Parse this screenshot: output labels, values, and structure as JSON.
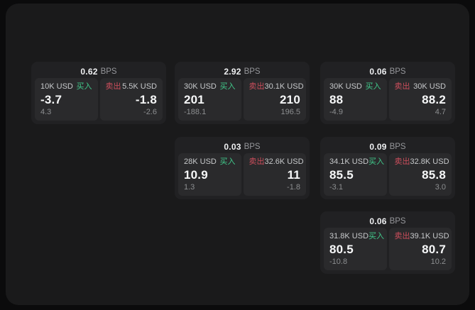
{
  "labels": {
    "bps_unit": "BPS",
    "buy": "买入",
    "sell": "卖出"
  },
  "theme": {
    "page_bg": "#0b0b0c",
    "surface_bg": "#1a1a1b",
    "card_bg": "#212123",
    "panel_bg": "#2a2a2c",
    "buy_color": "#41c98b",
    "sell_color": "#cc4e5c",
    "number_color": "#f7f8f9",
    "muted_color": "#8c8e90"
  },
  "cards": [
    {
      "bps": "0.62",
      "buy": {
        "size": "10K USD",
        "price": "-3.7",
        "change": "4.3"
      },
      "sell": {
        "size": "5.5K USD",
        "price": "-1.8",
        "change": "-2.6"
      }
    },
    {
      "bps": "2.92",
      "buy": {
        "size": "30K USD",
        "price": "201",
        "change": "-188.1"
      },
      "sell": {
        "size": "30.1K USD",
        "price": "210",
        "change": "196.5"
      }
    },
    {
      "bps": "0.06",
      "buy": {
        "size": "30K USD",
        "price": "88",
        "change": "-4.9"
      },
      "sell": {
        "size": "30K USD",
        "price": "88.2",
        "change": "4.7"
      }
    },
    {
      "bps": "0.03",
      "buy": {
        "size": "28K USD",
        "price": "10.9",
        "change": "1.3"
      },
      "sell": {
        "size": "32.6K USD",
        "price": "11",
        "change": "-1.8"
      }
    },
    {
      "bps": "0.09",
      "buy": {
        "size": "34.1K USD",
        "price": "85.5",
        "change": "-3.1"
      },
      "sell": {
        "size": "32.8K USD",
        "price": "85.8",
        "change": "3.0"
      }
    },
    {
      "bps": "0.06",
      "buy": {
        "size": "31.8K USD",
        "price": "80.5",
        "change": "-10.8"
      },
      "sell": {
        "size": "39.1K USD",
        "price": "80.7",
        "change": "10.2"
      }
    }
  ]
}
